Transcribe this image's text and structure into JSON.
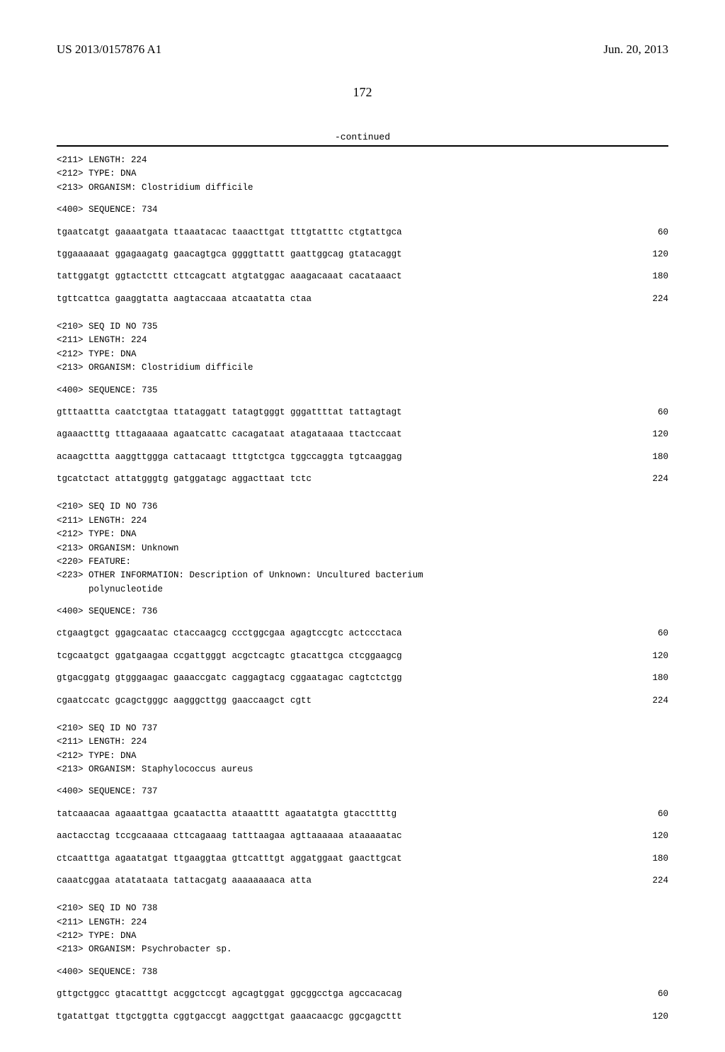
{
  "header": {
    "pub_number": "US 2013/0157876 A1",
    "pub_date": "Jun. 20, 2013"
  },
  "page_number": "172",
  "continued_label": "-continued",
  "sequences": [
    {
      "meta": [
        "<211> LENGTH: 224",
        "<212> TYPE: DNA",
        "<213> ORGANISM: Clostridium difficile"
      ],
      "seq_label": "<400> SEQUENCE: 734",
      "lines": [
        {
          "text": "tgaatcatgt gaaaatgata ttaaatacac taaacttgat tttgtatttc ctgtattgca",
          "num": "60"
        },
        {
          "text": "tggaaaaaat ggagaagatg gaacagtgca ggggttattt gaattggcag gtatacaggt",
          "num": "120"
        },
        {
          "text": "tattggatgt ggtactcttt cttcagcatt atgtatggac aaagacaaat cacataaact",
          "num": "180"
        },
        {
          "text": "tgttcattca gaaggtatta aagtaccaaa atcaatatta ctaa",
          "num": "224"
        }
      ]
    },
    {
      "meta": [
        "<210> SEQ ID NO 735",
        "<211> LENGTH: 224",
        "<212> TYPE: DNA",
        "<213> ORGANISM: Clostridium difficile"
      ],
      "seq_label": "<400> SEQUENCE: 735",
      "lines": [
        {
          "text": "gtttaattta caatctgtaa ttataggatt tatagtgggt gggattttat tattagtagt",
          "num": "60"
        },
        {
          "text": "agaaactttg tttagaaaaa agaatcattc cacagataat atagataaaa ttactccaat",
          "num": "120"
        },
        {
          "text": "acaagcttta aaggttggga cattacaagt tttgtctgca tggccaggta tgtcaaggag",
          "num": "180"
        },
        {
          "text": "tgcatctact attatgggtg gatggatagc aggacttaat tctc",
          "num": "224"
        }
      ]
    },
    {
      "meta": [
        "<210> SEQ ID NO 736",
        "<211> LENGTH: 224",
        "<212> TYPE: DNA",
        "<213> ORGANISM: Unknown",
        "<220> FEATURE:",
        "<223> OTHER INFORMATION: Description of Unknown: Uncultured bacterium",
        "      polynucleotide"
      ],
      "seq_label": "<400> SEQUENCE: 736",
      "lines": [
        {
          "text": "ctgaagtgct ggagcaatac ctaccaagcg ccctggcgaa agagtccgtc actccctaca",
          "num": "60"
        },
        {
          "text": "tcgcaatgct ggatgaagaa ccgattgggt acgctcagtc gtacattgca ctcggaagcg",
          "num": "120"
        },
        {
          "text": "gtgacggatg gtgggaagac gaaaccgatc caggagtacg cggaatagac cagtctctgg",
          "num": "180"
        },
        {
          "text": "cgaatccatc gcagctgggc aagggcttgg gaaccaagct cgtt",
          "num": "224"
        }
      ]
    },
    {
      "meta": [
        "<210> SEQ ID NO 737",
        "<211> LENGTH: 224",
        "<212> TYPE: DNA",
        "<213> ORGANISM: Staphylococcus aureus"
      ],
      "seq_label": "<400> SEQUENCE: 737",
      "lines": [
        {
          "text": "tatcaaacaa agaaattgaa gcaatactta ataaatttt agaatatgta gtaccttttg",
          "num": "60"
        },
        {
          "text": "aactacctag tccgcaaaaa cttcagaaag tatttaagaa agttaaaaaa ataaaaatac",
          "num": "120"
        },
        {
          "text": "ctcaatttga agaatatgat ttgaaggtaa gttcatttgt aggatggaat gaacttgcat",
          "num": "180"
        },
        {
          "text": "caaatcggaa atatataata tattacgatg aaaaaaaaca atta",
          "num": "224"
        }
      ]
    },
    {
      "meta": [
        "<210> SEQ ID NO 738",
        "<211> LENGTH: 224",
        "<212> TYPE: DNA",
        "<213> ORGANISM: Psychrobacter sp."
      ],
      "seq_label": "<400> SEQUENCE: 738",
      "lines": [
        {
          "text": "gttgctggcc gtacatttgt acggctccgt agcagtggat ggcggcctga agccacacag",
          "num": "60"
        },
        {
          "text": "tgatattgat ttgctggtta cggtgaccgt aaggcttgat gaaacaacgc ggcgagcttt",
          "num": "120"
        }
      ]
    }
  ]
}
